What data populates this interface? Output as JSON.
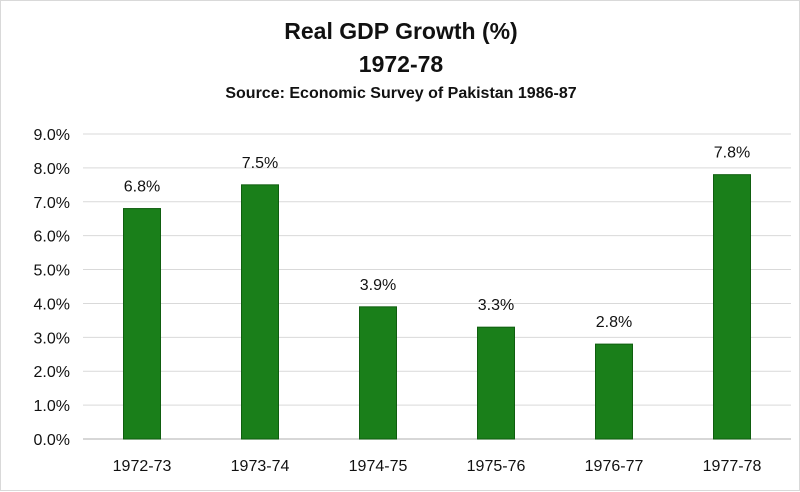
{
  "chart_data": {
    "type": "bar",
    "title": "Real GDP Growth (%)",
    "subtitle": "1972-78",
    "source": "Source: Economic Survey of Pakistan 1986-87",
    "categories": [
      "1972-73",
      "1973-74",
      "1974-75",
      "1975-76",
      "1976-77",
      "1977-78"
    ],
    "values": [
      6.8,
      7.5,
      3.9,
      3.3,
      2.8,
      7.8
    ],
    "data_labels": [
      "6.8%",
      "7.5%",
      "3.9%",
      "3.3%",
      "2.8%",
      "7.8%"
    ],
    "y_ticks": [
      "0.0%",
      "1.0%",
      "2.0%",
      "3.0%",
      "4.0%",
      "5.0%",
      "6.0%",
      "7.0%",
      "8.0%",
      "9.0%"
    ],
    "ylim": [
      0,
      9
    ],
    "grid": true,
    "legend": false,
    "bar_color": "#1a7f1a",
    "bar_edge_color": "#0f5e0f",
    "grid_color": "#d9d9d9"
  }
}
